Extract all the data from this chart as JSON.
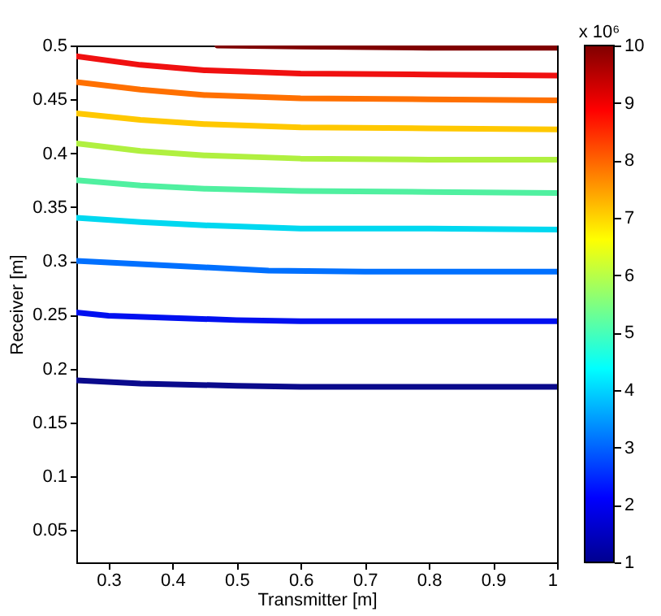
{
  "chart_data": {
    "type": "line",
    "xlabel": "Transmitter [m]",
    "ylabel": "Receiver [m]",
    "clabel": "x 10⁶",
    "xlim": [
      0.25,
      1
    ],
    "xticks": [
      0.3,
      0.4,
      0.5,
      0.6,
      0.7,
      0.8,
      0.9,
      1
    ],
    "ylim": [
      0.02,
      0.5
    ],
    "yticks": [
      0.05,
      0.1,
      0.15,
      0.2,
      0.25,
      0.3,
      0.35,
      0.4,
      0.45,
      0.5
    ],
    "clim": [
      1,
      10
    ],
    "cticks": [
      1,
      2,
      3,
      4,
      5,
      6,
      7,
      8,
      9,
      10
    ],
    "grid": false,
    "marker": "none",
    "line_style": "solid",
    "series": [
      {
        "color": "#0a0a8c",
        "x": [
          0.25,
          0.35,
          0.5,
          0.6,
          0.8,
          1
        ],
        "values": [
          0.189,
          0.186,
          0.184,
          0.183,
          0.183,
          0.183
        ]
      },
      {
        "color": "#0010f0",
        "x": [
          0.25,
          0.3,
          0.4,
          0.5,
          0.6,
          0.8,
          1
        ],
        "values": [
          0.252,
          0.249,
          0.247,
          0.245,
          0.244,
          0.244,
          0.244
        ]
      },
      {
        "color": "#0070ff",
        "x": [
          0.25,
          0.35,
          0.45,
          0.55,
          0.7,
          1
        ],
        "values": [
          0.3,
          0.297,
          0.294,
          0.291,
          0.29,
          0.29
        ]
      },
      {
        "color": "#00d8f0",
        "x": [
          0.25,
          0.35,
          0.45,
          0.6,
          0.8,
          1
        ],
        "values": [
          0.34,
          0.336,
          0.333,
          0.33,
          0.33,
          0.329
        ]
      },
      {
        "color": "#50f0a0",
        "x": [
          0.25,
          0.35,
          0.45,
          0.6,
          0.8,
          1
        ],
        "values": [
          0.375,
          0.37,
          0.367,
          0.365,
          0.364,
          0.363
        ]
      },
      {
        "color": "#b0f040",
        "x": [
          0.25,
          0.35,
          0.45,
          0.6,
          0.8,
          1
        ],
        "values": [
          0.409,
          0.402,
          0.398,
          0.395,
          0.394,
          0.394
        ]
      },
      {
        "color": "#ffc800",
        "x": [
          0.25,
          0.35,
          0.45,
          0.6,
          0.8,
          1
        ],
        "values": [
          0.437,
          0.431,
          0.427,
          0.424,
          0.423,
          0.422
        ]
      },
      {
        "color": "#ff7000",
        "x": [
          0.25,
          0.35,
          0.45,
          0.6,
          0.8,
          1
        ],
        "values": [
          0.466,
          0.459,
          0.454,
          0.451,
          0.45,
          0.449
        ]
      },
      {
        "color": "#f01010",
        "x": [
          0.25,
          0.35,
          0.45,
          0.6,
          0.8,
          1
        ],
        "values": [
          0.49,
          0.482,
          0.477,
          0.474,
          0.473,
          0.472
        ]
      },
      {
        "color": "#800000",
        "x": [
          0.47,
          0.6,
          0.8,
          1
        ],
        "values": [
          0.5,
          0.499,
          0.498,
          0.498
        ]
      }
    ]
  }
}
